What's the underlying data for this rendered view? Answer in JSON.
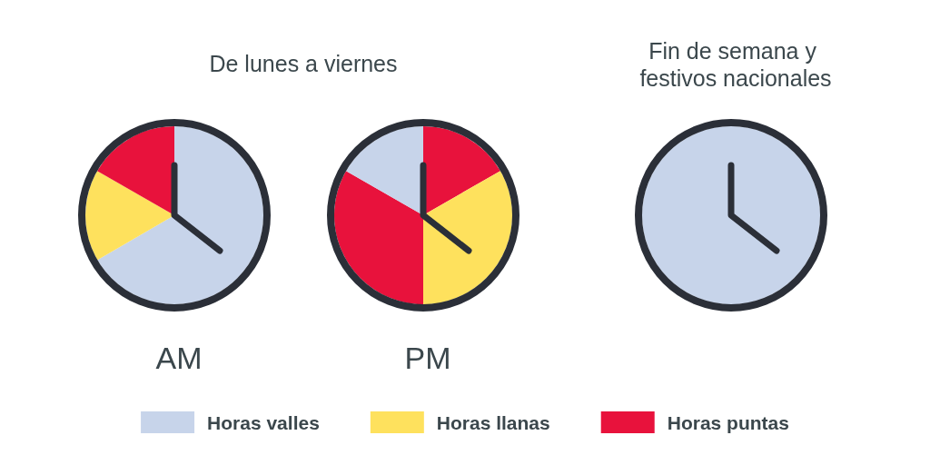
{
  "chart_data": [
    {
      "type": "pie",
      "title": "De lunes a viernes",
      "annotations": [
        "AM"
      ],
      "categories": [
        "Horas valles",
        "Horas llanas",
        "Horas puntas"
      ],
      "values": [
        66.6,
        16.7,
        16.7
      ],
      "colors": [
        "#c7d4ea",
        "#fee15d",
        "#e8123c"
      ],
      "legend": "bottom"
    },
    {
      "type": "pie",
      "annotations": [
        "PM"
      ],
      "categories": [
        null,
        null,
        null,
        null
      ],
      "values": [
        16.7,
        33.3,
        33.3,
        16.7
      ],
      "colors": [
        "#e8123c",
        "#fee15d",
        "#e8123c",
        "#c7d4ea"
      ]
    },
    {
      "type": "pie",
      "title": "Fin de semana y festivos nacionales",
      "categories": [
        null
      ],
      "values": [
        100
      ],
      "colors": [
        "#c7d4ea"
      ]
    }
  ]
}
